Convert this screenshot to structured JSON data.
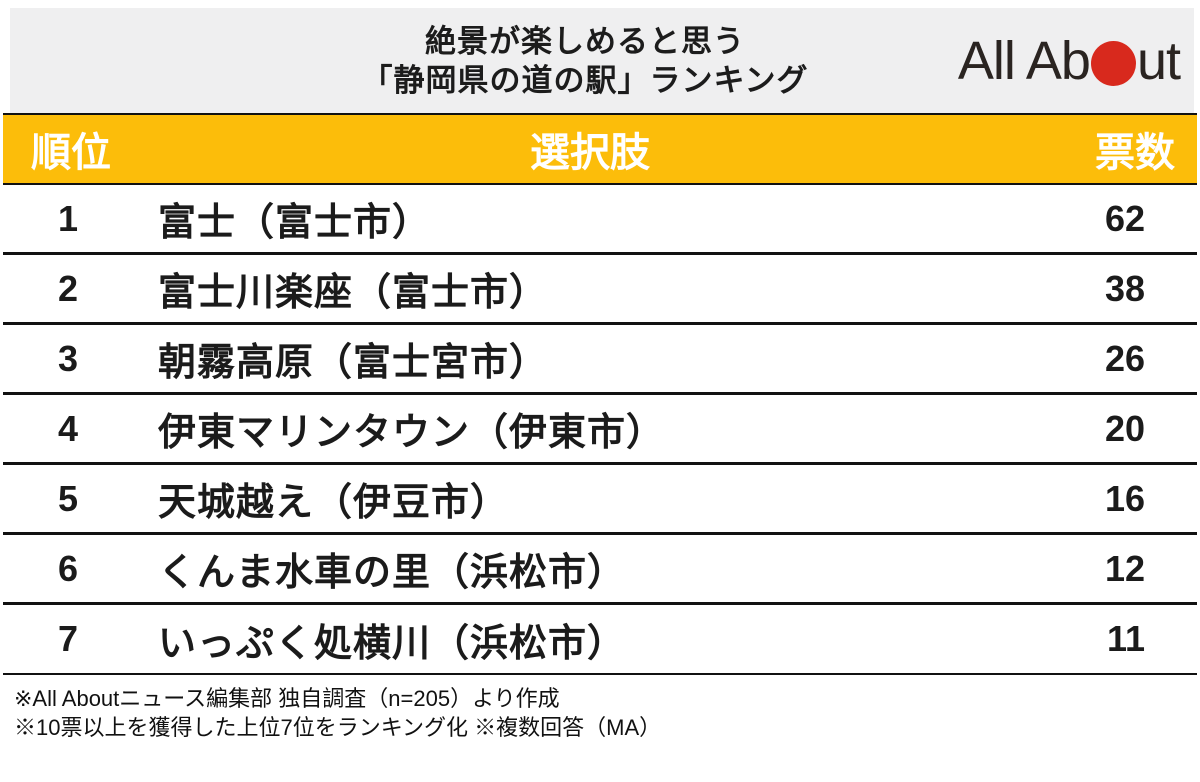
{
  "header": {
    "title_line1": "絶景が楽しめると思う",
    "title_line2": "「静岡県の道の駅」ランキング",
    "logo": {
      "text_before_dot": "All Ab",
      "text_after_dot": "ut",
      "dot_icon": "red-circle",
      "dot_color": "#d8291d",
      "text_color": "#2a2421"
    },
    "band_color": "#efeff0"
  },
  "table": {
    "header_bg_color": "#fcbd0a",
    "header_text_color": "#ffffff",
    "columns": {
      "rank": "順位",
      "choice": "選択肢",
      "votes": "票数"
    },
    "rows": [
      {
        "rank": "1",
        "choice": "富士（富士市）",
        "votes": "62"
      },
      {
        "rank": "2",
        "choice": "富士川楽座（富士市）",
        "votes": "38"
      },
      {
        "rank": "3",
        "choice": "朝霧高原（富士宮市）",
        "votes": "26"
      },
      {
        "rank": "4",
        "choice": "伊東マリンタウン（伊東市）",
        "votes": "20"
      },
      {
        "rank": "5",
        "choice": "天城越え（伊豆市）",
        "votes": "16"
      },
      {
        "rank": "6",
        "choice": "くんま水車の里（浜松市）",
        "votes": "12"
      },
      {
        "rank": "7",
        "choice": "いっぷく処横川（浜松市）",
        "votes": "11"
      }
    ]
  },
  "footer": {
    "note1": "※All Aboutニュース編集部 独自調査（n=205）より作成",
    "note2": "※10票以上を獲得した上位7位をランキング化 ※複数回答（MA）"
  },
  "chart_data": {
    "type": "table",
    "title": "絶景が楽しめると思う「静岡県の道の駅」ランキング",
    "columns": [
      "順位",
      "選択肢",
      "票数"
    ],
    "categories": [
      "富士（富士市）",
      "富士川楽座（富士市）",
      "朝霧高原（富士宮市）",
      "伊東マリンタウン（伊東市）",
      "天城越え（伊豆市）",
      "くんま水車の里（浜松市）",
      "いっぷく処横川（浜松市）"
    ],
    "values": [
      62,
      38,
      26,
      20,
      16,
      12,
      11
    ],
    "ranks": [
      1,
      2,
      3,
      4,
      5,
      6,
      7
    ],
    "value_label": "票数",
    "source_notes": [
      "※All Aboutニュース編集部 独自調査（n=205）より作成",
      "※10票以上を獲得した上位7位をランキング化 ※複数回答（MA）"
    ]
  }
}
